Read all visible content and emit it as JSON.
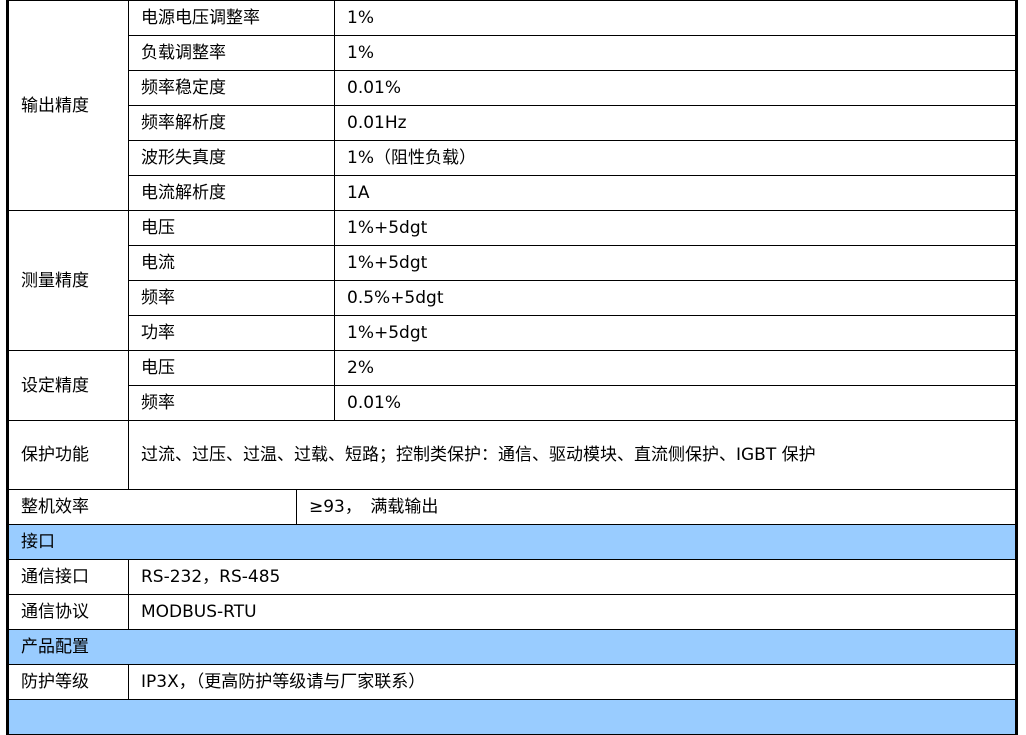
{
  "output_precision": {
    "label": "输出精度",
    "rows": [
      {
        "name": "电源电压调整率",
        "value": "1%"
      },
      {
        "name": "负载调整率",
        "value": "1%"
      },
      {
        "name": "频率稳定度",
        "value": "0.01%"
      },
      {
        "name": "频率解析度",
        "value": "0.01Hz"
      },
      {
        "name": "波形失真度",
        "value": "1%（阻性负载）"
      },
      {
        "name": "电流解析度",
        "value": "1A"
      }
    ]
  },
  "measurement_precision": {
    "label": "测量精度",
    "rows": [
      {
        "name": "电压",
        "value": "1%+5dgt"
      },
      {
        "name": "电流",
        "value": "1%+5dgt"
      },
      {
        "name": "频率",
        "value": "0.5%+5dgt"
      },
      {
        "name": "功率",
        "value": "1%+5dgt"
      }
    ]
  },
  "setting_precision": {
    "label": "设定精度",
    "rows": [
      {
        "name": "电压",
        "value": "2%"
      },
      {
        "name": "频率",
        "value": "0.01%"
      }
    ]
  },
  "protection": {
    "label": "保护功能",
    "value": "过流、过压、过温、过载、短路；控制类保护：通信、驱动模块、直流侧保护、IGBT 保护"
  },
  "efficiency": {
    "label": "整机效率",
    "value": "≥93，　满载输出"
  },
  "interface": {
    "section": "接口",
    "comm_interface": {
      "label": "通信接口",
      "value": "RS-232，RS-485"
    },
    "comm_protocol": {
      "label": "通信协议",
      "value": "MODBUS-RTU"
    }
  },
  "config": {
    "section": "产品配置",
    "protection_grade": {
      "label": "防护等级",
      "value": "IP3X，（更高防护等级请与厂家联系）"
    }
  },
  "colors": {
    "section_bg": "#99ccff",
    "border": "#000000"
  }
}
